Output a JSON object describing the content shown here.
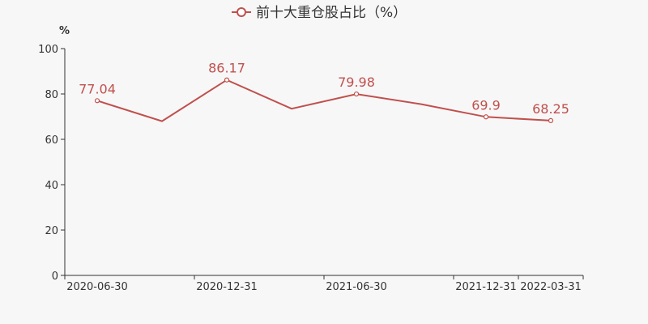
{
  "chart_data": {
    "type": "line",
    "legend": "前十大重仓股占比（%）",
    "y_unit": "%",
    "ylim": [
      0,
      100
    ],
    "y_ticks": [
      0,
      20,
      40,
      60,
      80,
      100
    ],
    "x_tick_labels": [
      "2020-06-30",
      "2020-12-31",
      "2021-06-30",
      "2021-12-31",
      "2022-03-31"
    ],
    "grid": false,
    "legend_position": "top-center",
    "color": "#c0504d",
    "series": [
      {
        "name": "前十大重仓股占比（%）",
        "points": [
          {
            "x": "2020-06-30",
            "y": 77.04,
            "label": "77.04"
          },
          {
            "x": "2020-09-30",
            "y": 68.0
          },
          {
            "x": "2020-12-31",
            "y": 86.17,
            "label": "86.17"
          },
          {
            "x": "2021-03-31",
            "y": 73.5
          },
          {
            "x": "2021-06-30",
            "y": 79.98,
            "label": "79.98"
          },
          {
            "x": "2021-09-30",
            "y": 75.5
          },
          {
            "x": "2021-12-31",
            "y": 69.9,
            "label": "69.9"
          },
          {
            "x": "2022-03-31",
            "y": 68.25,
            "label": "68.25"
          }
        ]
      }
    ]
  }
}
